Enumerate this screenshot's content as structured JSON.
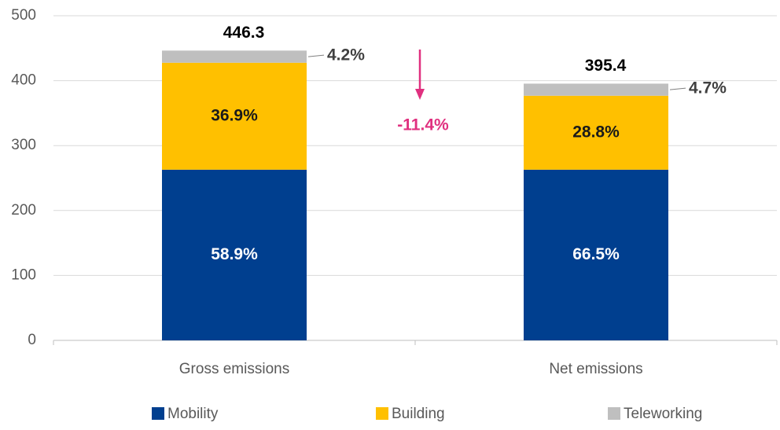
{
  "chart_data": {
    "type": "stacked_bar",
    "categories": [
      "Gross emissions",
      "Net emissions"
    ],
    "series": [
      {
        "name": "Mobility",
        "color": "#003f8f",
        "values": [
          262.9,
          262.9
        ],
        "share_labels": [
          "58.9%",
          "66.5%"
        ],
        "label_color": "#ffffff"
      },
      {
        "name": "Building",
        "color": "#ffc000",
        "values": [
          164.7,
          113.9
        ],
        "share_labels": [
          "36.9%",
          "28.8%"
        ],
        "label_color": "#1a1a1a"
      },
      {
        "name": "Teleworking",
        "color": "#bfbfbf",
        "values": [
          18.7,
          18.6
        ],
        "share_labels": [
          "4.2%",
          "4.7%"
        ],
        "label_color": "#404040"
      }
    ],
    "totals": [
      446.3,
      395.4
    ],
    "annotation": {
      "text": "-11.4%",
      "color": "#e0307f"
    },
    "ylim": [
      0,
      500
    ],
    "yticks": [
      0,
      100,
      200,
      300,
      400,
      500
    ],
    "grid": true,
    "legend": "bottom"
  }
}
